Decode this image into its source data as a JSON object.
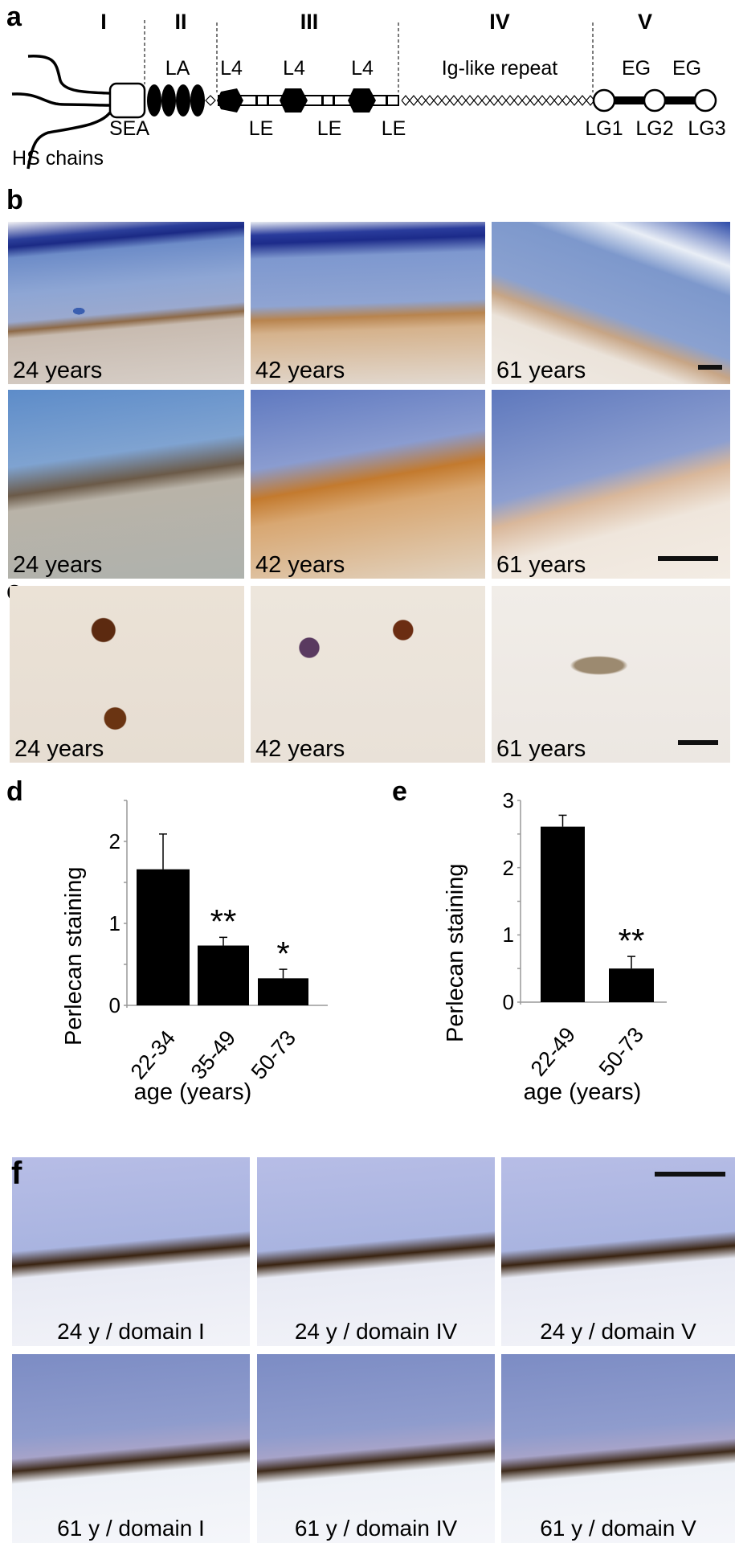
{
  "panels": {
    "a": "a",
    "b": "b",
    "c": "c",
    "d": "d",
    "e": "e",
    "f": "f"
  },
  "domain_diagram": {
    "domains": [
      "I",
      "II",
      "III",
      "IV",
      "V"
    ],
    "labels": {
      "LA": "LA",
      "L4": "L4",
      "LE": "LE",
      "ig": "Ig-like repeat",
      "EG": "EG",
      "SEA": "SEA",
      "HS": "HS chains",
      "LG1": "LG1",
      "LG2": "LG2",
      "LG3": "LG3"
    }
  },
  "panel_b": {
    "row1": [
      "24 years",
      "42 years",
      "61 years"
    ],
    "row2": [
      "24 years",
      "42 years",
      "61 years"
    ]
  },
  "panel_c": [
    "24 years",
    "42 years",
    "61 years"
  ],
  "panel_f": {
    "row1": [
      "24 y / domain I",
      "24 y / domain IV",
      "24 y / domain V"
    ],
    "row2": [
      "61 y / domain I",
      "61 y / domain IV",
      "61 y / domain V"
    ]
  },
  "chart_data": [
    {
      "type": "bar",
      "panel": "d",
      "categories": [
        "22-34",
        "35-49",
        "50-73"
      ],
      "values": [
        1.66,
        0.73,
        0.33
      ],
      "error": [
        0.43,
        0.1,
        0.11
      ],
      "significance": [
        "",
        "**",
        "*"
      ],
      "xlabel": "age (years)",
      "ylabel": "Perlecan staining",
      "ylim": [
        0,
        2.5
      ],
      "yticks": [
        0,
        1,
        2
      ],
      "ytick_labels": [
        "0",
        "1",
        "2"
      ],
      "bar_color": "#000000"
    },
    {
      "type": "bar",
      "panel": "e",
      "categories": [
        "22-49",
        "50-73"
      ],
      "values": [
        2.61,
        0.5
      ],
      "error": [
        0.17,
        0.18
      ],
      "significance": [
        "",
        "**"
      ],
      "xlabel": "age (years)",
      "ylabel": "Perlecan staining",
      "ylim": [
        0,
        3
      ],
      "yticks": [
        0,
        1,
        2,
        3
      ],
      "ytick_labels": [
        "0",
        "1",
        "2",
        "3"
      ],
      "bar_color": "#000000"
    }
  ]
}
